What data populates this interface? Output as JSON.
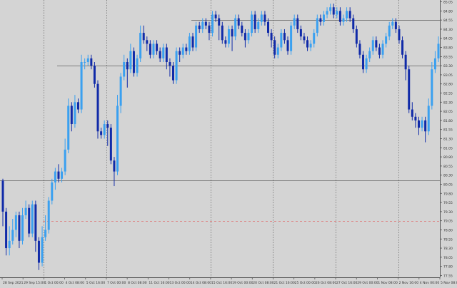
{
  "chart_data": {
    "type": "candlestick",
    "title": "",
    "xlabel": "",
    "ylabel": "",
    "ylim": [
      77.5,
      85.1
    ],
    "grid": true,
    "colors": {
      "background": "#d4d4d4",
      "bull": "#3aa0f0",
      "bear": "#102aa8",
      "grid": "#6a6a6a",
      "level_line": "#606060",
      "current_price_line": "#e07070",
      "axis_text": "#333333"
    },
    "y_ticks": [
      "85.05",
      "84.80",
      "84.55",
      "84.30",
      "84.05",
      "83.80",
      "83.55",
      "83.30",
      "83.05",
      "82.80",
      "82.55",
      "82.30",
      "82.05",
      "81.80",
      "81.55",
      "81.30",
      "81.05",
      "80.80",
      "80.55",
      "80.30",
      "80.05",
      "79.80",
      "79.55",
      "79.30",
      "79.05",
      "78.80",
      "78.55",
      "78.30",
      "78.05",
      "77.80",
      "77.55"
    ],
    "x_ticks": [
      "28 Sep 2021",
      "29 Sep 15:00",
      "1 Oct 00:00",
      "4 Oct 08:00",
      "5 Oct 16:00",
      "7 Oct 00:00",
      "8 Oct 08:00",
      "11 Oct 16:00",
      "13 Oct 00:00",
      "14 Oct 08:00",
      "15 Oct 16:00",
      "19 Oct 00:00",
      "20 Oct 08:00",
      "21 Oct 16:00",
      "25 Oct 00:00",
      "26 Oct 08:00",
      "27 Oct 16:00",
      "29 Oct 00:00",
      "1 Nov 08:00",
      "2 Nov 16:00",
      "4 Nov 00:00",
      "5 Nov 08:00"
    ],
    "vgrid_tick_indices": [
      2,
      5,
      10,
      13,
      16,
      19
    ],
    "levels": [
      84.55,
      83.3,
      80.15
    ],
    "current_price": 79.05,
    "candles": [
      [
        80.15,
        79.3,
        80.2,
        78.9
      ],
      [
        79.3,
        78.3,
        79.4,
        78.1
      ],
      [
        78.3,
        78.5,
        78.9,
        78.1
      ],
      [
        78.5,
        78.8,
        79.1,
        78.4
      ],
      [
        78.8,
        79.2,
        79.3,
        78.6
      ],
      [
        79.2,
        78.5,
        79.3,
        78.3
      ],
      [
        78.5,
        79.2,
        79.4,
        78.4
      ],
      [
        79.2,
        79.4,
        79.6,
        79.1
      ],
      [
        79.4,
        78.7,
        79.5,
        78.6
      ],
      [
        78.7,
        79.5,
        79.6,
        78.6
      ],
      [
        79.5,
        78.5,
        79.6,
        78.2
      ],
      [
        78.5,
        77.9,
        78.6,
        77.7
      ],
      [
        77.9,
        78.6,
        78.9,
        77.8
      ],
      [
        78.6,
        78.8,
        79.2,
        78.5
      ],
      [
        78.8,
        79.6,
        79.7,
        78.7
      ],
      [
        79.6,
        80.1,
        80.2,
        79.5
      ],
      [
        80.1,
        80.4,
        80.5,
        79.9
      ],
      [
        80.4,
        80.2,
        80.6,
        80.1
      ],
      [
        80.2,
        80.4,
        80.5,
        80.1
      ],
      [
        80.4,
        81.0,
        81.3,
        80.3
      ],
      [
        81.0,
        82.2,
        82.4,
        80.9
      ],
      [
        82.2,
        81.7,
        82.3,
        81.5
      ],
      [
        81.7,
        82.3,
        82.5,
        81.6
      ],
      [
        82.3,
        82.1,
        82.4,
        82.0
      ],
      [
        82.1,
        83.4,
        83.6,
        82.0
      ],
      [
        83.4,
        83.4,
        83.5,
        83.2
      ],
      [
        83.4,
        83.5,
        83.6,
        83.3
      ],
      [
        83.5,
        83.3,
        83.6,
        83.2
      ],
      [
        83.3,
        82.8,
        83.4,
        82.7
      ],
      [
        82.8,
        81.5,
        82.9,
        81.3
      ],
      [
        81.5,
        81.4,
        81.6,
        81.3
      ],
      [
        81.4,
        81.7,
        81.8,
        81.3
      ],
      [
        81.7,
        81.6,
        81.8,
        81.1
      ],
      [
        81.6,
        80.7,
        81.7,
        80.6
      ],
      [
        80.7,
        80.4,
        80.8,
        80.0
      ],
      [
        80.4,
        82.2,
        82.5,
        80.3
      ],
      [
        82.2,
        83.0,
        83.1,
        82.0
      ],
      [
        83.0,
        83.4,
        83.6,
        82.9
      ],
      [
        83.4,
        83.2,
        83.5,
        82.7
      ],
      [
        83.2,
        83.7,
        83.9,
        83.1
      ],
      [
        83.7,
        83.1,
        83.8,
        83.0
      ],
      [
        83.1,
        83.5,
        83.6,
        83.0
      ],
      [
        83.5,
        84.2,
        84.4,
        83.4
      ],
      [
        84.2,
        84.0,
        84.4,
        83.9
      ],
      [
        84.0,
        83.9,
        84.1,
        83.7
      ],
      [
        83.9,
        83.6,
        84.0,
        83.5
      ],
      [
        83.6,
        83.9,
        84.0,
        83.5
      ],
      [
        83.9,
        83.7,
        84.0,
        83.6
      ],
      [
        83.7,
        83.5,
        83.8,
        83.4
      ],
      [
        83.5,
        83.8,
        83.9,
        83.4
      ],
      [
        83.8,
        83.4,
        83.9,
        83.2
      ],
      [
        83.4,
        83.3,
        83.5,
        83.0
      ],
      [
        83.3,
        82.9,
        83.4,
        82.8
      ],
      [
        82.9,
        83.7,
        83.8,
        82.8
      ],
      [
        83.7,
        83.6,
        83.8,
        83.4
      ],
      [
        83.6,
        83.8,
        83.9,
        83.5
      ],
      [
        83.8,
        83.7,
        83.9,
        83.6
      ],
      [
        83.7,
        84.1,
        84.2,
        83.6
      ],
      [
        84.1,
        83.8,
        84.2,
        83.7
      ],
      [
        83.8,
        84.4,
        84.5,
        83.7
      ],
      [
        84.4,
        84.3,
        84.5,
        84.2
      ],
      [
        84.3,
        84.5,
        84.6,
        84.2
      ],
      [
        84.5,
        84.4,
        84.6,
        84.3
      ],
      [
        84.4,
        84.2,
        84.5,
        84.0
      ],
      [
        84.2,
        84.7,
        84.8,
        84.1
      ],
      [
        84.7,
        84.6,
        84.8,
        84.5
      ],
      [
        84.6,
        84.4,
        84.7,
        84.0
      ],
      [
        84.4,
        84.0,
        84.5,
        83.9
      ],
      [
        84.0,
        83.9,
        84.1,
        83.8
      ],
      [
        83.9,
        84.3,
        84.4,
        83.8
      ],
      [
        84.3,
        84.1,
        84.4,
        83.7
      ],
      [
        84.1,
        84.6,
        84.7,
        84.0
      ],
      [
        84.6,
        84.4,
        84.7,
        84.3
      ],
      [
        84.4,
        84.2,
        84.5,
        84.1
      ],
      [
        84.2,
        84.0,
        84.3,
        83.8
      ],
      [
        84.0,
        84.2,
        84.3,
        83.9
      ],
      [
        84.2,
        84.7,
        84.8,
        84.1
      ],
      [
        84.7,
        84.3,
        84.8,
        84.2
      ],
      [
        84.3,
        84.5,
        84.6,
        84.2
      ],
      [
        84.5,
        84.7,
        84.8,
        84.4
      ],
      [
        84.7,
        84.5,
        84.8,
        84.4
      ],
      [
        84.5,
        84.2,
        84.6,
        84.1
      ],
      [
        84.2,
        84.0,
        84.3,
        83.8
      ],
      [
        84.0,
        83.6,
        84.1,
        83.5
      ],
      [
        83.6,
        83.8,
        83.9,
        83.5
      ],
      [
        83.8,
        84.2,
        84.3,
        83.7
      ],
      [
        84.2,
        84.0,
        84.3,
        83.9
      ],
      [
        84.0,
        83.7,
        84.1,
        83.6
      ],
      [
        83.7,
        84.4,
        84.5,
        83.6
      ],
      [
        84.4,
        84.6,
        84.7,
        84.3
      ],
      [
        84.6,
        84.3,
        84.7,
        84.2
      ],
      [
        84.3,
        84.1,
        84.4,
        84.0
      ],
      [
        84.1,
        84.0,
        84.2,
        83.9
      ],
      [
        84.0,
        83.8,
        84.1,
        83.7
      ],
      [
        83.8,
        83.9,
        84.0,
        83.7
      ],
      [
        83.9,
        84.2,
        84.3,
        83.8
      ],
      [
        84.2,
        84.6,
        84.7,
        84.1
      ],
      [
        84.6,
        84.5,
        84.7,
        84.4
      ],
      [
        84.5,
        84.7,
        84.8,
        84.4
      ],
      [
        84.7,
        84.8,
        84.9,
        84.6
      ],
      [
        84.8,
        84.9,
        85.0,
        84.7
      ],
      [
        84.9,
        84.7,
        85.0,
        84.6
      ],
      [
        84.7,
        84.8,
        84.9,
        84.6
      ],
      [
        84.8,
        84.5,
        84.9,
        84.4
      ],
      [
        84.5,
        84.6,
        84.7,
        84.4
      ],
      [
        84.6,
        84.8,
        84.9,
        84.5
      ],
      [
        84.8,
        84.6,
        84.9,
        84.5
      ],
      [
        84.6,
        84.3,
        84.7,
        84.2
      ],
      [
        84.3,
        83.9,
        84.4,
        83.8
      ],
      [
        83.9,
        83.6,
        84.0,
        83.5
      ],
      [
        83.6,
        83.2,
        83.7,
        83.1
      ],
      [
        83.2,
        83.5,
        83.6,
        83.1
      ],
      [
        83.5,
        83.7,
        83.8,
        83.4
      ],
      [
        83.7,
        84.0,
        84.1,
        83.6
      ],
      [
        84.0,
        83.8,
        84.1,
        83.7
      ],
      [
        83.8,
        83.6,
        83.9,
        83.5
      ],
      [
        83.6,
        83.9,
        84.0,
        83.5
      ],
      [
        83.9,
        84.1,
        84.2,
        83.8
      ],
      [
        84.1,
        84.4,
        84.5,
        84.0
      ],
      [
        84.4,
        84.5,
        84.6,
        84.3
      ],
      [
        84.5,
        84.3,
        84.6,
        84.2
      ],
      [
        84.3,
        84.0,
        84.4,
        83.9
      ],
      [
        84.0,
        83.6,
        84.1,
        83.5
      ],
      [
        83.6,
        83.2,
        83.7,
        82.9
      ],
      [
        83.2,
        82.1,
        83.3,
        82.0
      ],
      [
        82.1,
        81.9,
        82.3,
        81.8
      ],
      [
        81.9,
        81.8,
        82.0,
        81.6
      ],
      [
        81.8,
        81.6,
        81.9,
        81.4
      ],
      [
        81.6,
        81.8,
        81.9,
        81.5
      ],
      [
        81.8,
        81.5,
        81.9,
        81.2
      ],
      [
        81.5,
        82.2,
        82.4,
        81.4
      ],
      [
        82.2,
        83.2,
        83.4,
        82.1
      ],
      [
        83.2,
        83.5,
        83.7,
        83.1
      ],
      [
        83.5,
        83.9,
        84.1,
        83.4
      ]
    ]
  }
}
